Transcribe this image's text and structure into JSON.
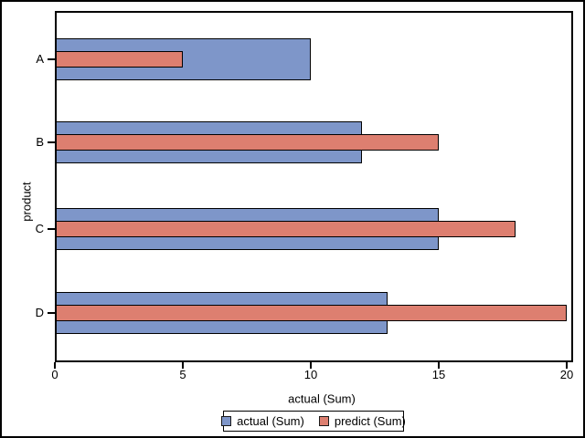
{
  "chart_data": {
    "type": "bar",
    "orientation": "horizontal",
    "xlabel": "actual (Sum)",
    "ylabel": "product",
    "categories": [
      "A",
      "B",
      "C",
      "D"
    ],
    "series": [
      {
        "name": "actual (Sum)",
        "color": "#7e96c9",
        "values": [
          10,
          12,
          15,
          13
        ]
      },
      {
        "name": "predict (Sum)",
        "color": "#dd7f70",
        "values": [
          5,
          15,
          18,
          20
        ]
      }
    ],
    "xlim": [
      0,
      20
    ],
    "xticks": [
      0,
      5,
      10,
      15,
      20
    ],
    "grid": false,
    "legend_position": "bottom-center",
    "colors": {
      "bar_border": "#000000",
      "frame": "#000000",
      "text": "#000000",
      "background": "#ffffff",
      "swatch_border": "#1a1a1a"
    }
  }
}
